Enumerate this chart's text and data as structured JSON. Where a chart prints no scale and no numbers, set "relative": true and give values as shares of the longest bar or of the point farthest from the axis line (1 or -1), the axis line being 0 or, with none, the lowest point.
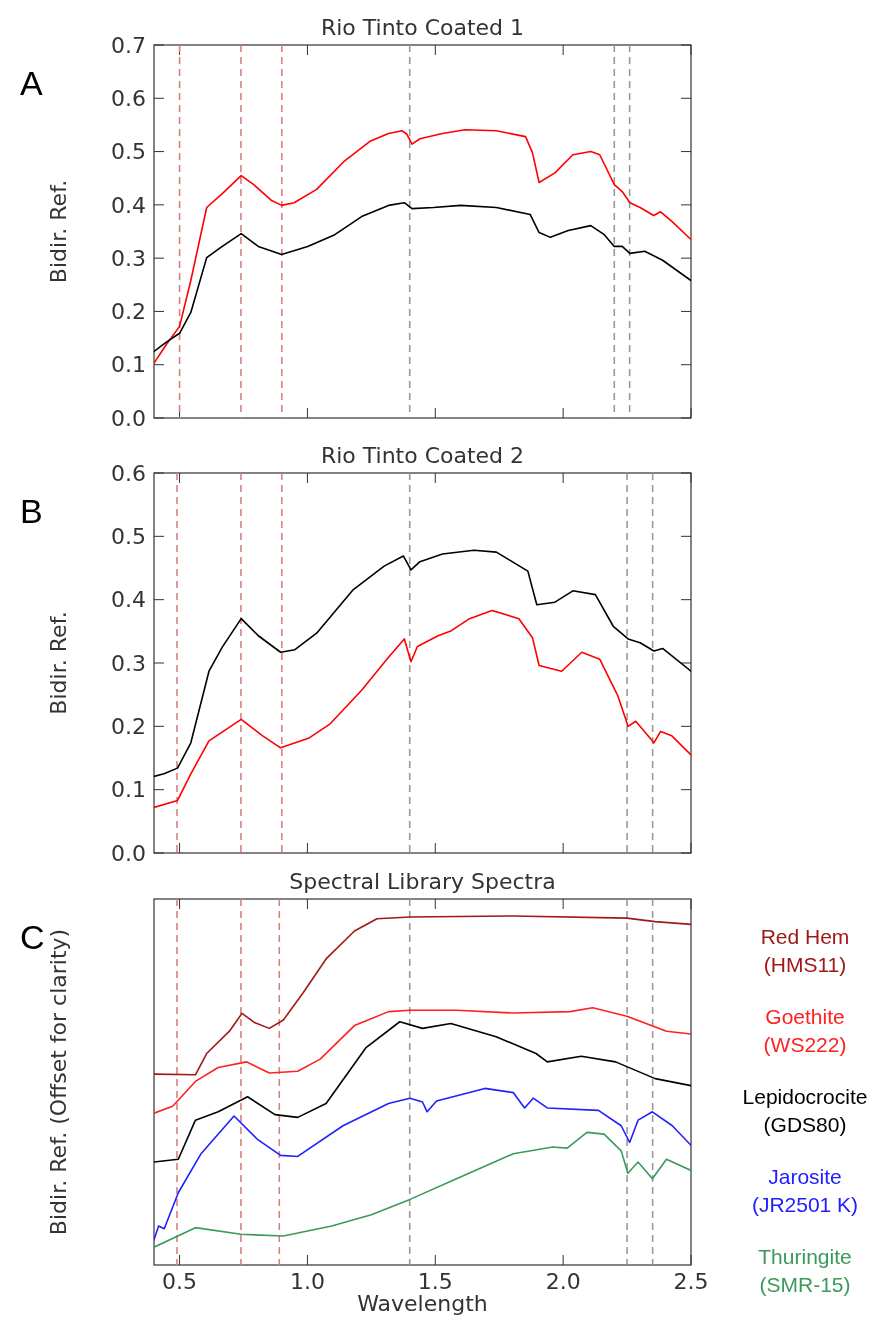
{
  "chart_data": [
    {
      "type": "line",
      "title": "Rio Tinto Coated 1",
      "ylabel": "Bidir. Ref.",
      "annotations": [
        "A"
      ],
      "xlim": [
        0.4,
        2.5
      ],
      "xticks": [
        {
          "value": 0.5,
          "label": null
        },
        {
          "value": 1,
          "label": null
        },
        {
          "value": 1.5,
          "label": null
        },
        {
          "value": 2,
          "label": null
        },
        {
          "value": 2.5,
          "label": null
        }
      ],
      "ylim": [
        0,
        0.7
      ],
      "yticks": [
        {
          "value": 0,
          "label": "0.0"
        },
        0.1,
        0.2,
        0.3,
        0.4,
        0.5,
        0.6,
        0.7
      ],
      "tick_labels": "y",
      "grid": false,
      "line_style": "solid",
      "ref_lines": [
        {
          "axis": "x",
          "value": 0.5,
          "color": "#d98080",
          "line_style": "dashed"
        },
        {
          "axis": "x",
          "value": 0.74,
          "color": "#d98080",
          "line_style": "dashed"
        },
        {
          "axis": "x",
          "value": 0.9,
          "color": "#d98080",
          "line_style": "dashed"
        },
        {
          "axis": "x",
          "value": 1.4,
          "color": "#999999",
          "line_style": "dashed"
        },
        {
          "axis": "x",
          "value": 2.2,
          "color": "#999999",
          "line_style": "dashed"
        },
        {
          "axis": "x",
          "value": 2.26,
          "color": "#999999",
          "line_style": "dashed"
        }
      ],
      "series": [
        {
          "color": "#ff0000",
          "x": [
            0.4,
            0.447,
            0.5,
            0.544,
            0.606,
            0.667,
            0.741,
            0.79,
            0.86,
            0.899,
            0.948,
            1.036,
            1.142,
            1.247,
            1.317,
            1.37,
            1.388,
            1.409,
            1.44,
            1.528,
            1.616,
            1.739,
            1.853,
            1.88,
            1.906,
            1.968,
            2.038,
            2.108,
            2.143,
            2.2,
            2.231,
            2.261,
            2.301,
            2.354,
            2.381,
            2.425,
            2.5
          ],
          "values": [
            0.103,
            0.137,
            0.172,
            0.258,
            0.395,
            0.421,
            0.455,
            0.438,
            0.408,
            0.399,
            0.404,
            0.429,
            0.481,
            0.52,
            0.534,
            0.539,
            0.533,
            0.514,
            0.524,
            0.534,
            0.541,
            0.539,
            0.528,
            0.498,
            0.442,
            0.46,
            0.494,
            0.5,
            0.494,
            0.438,
            0.425,
            0.404,
            0.395,
            0.38,
            0.387,
            0.369,
            0.335
          ]
        },
        {
          "color": "#000000",
          "x": [
            0.4,
            0.447,
            0.5,
            0.544,
            0.606,
            0.667,
            0.741,
            0.808,
            0.899,
            1.001,
            1.107,
            1.212,
            1.317,
            1.379,
            1.409,
            1.493,
            1.599,
            1.739,
            1.871,
            1.906,
            1.95,
            2.02,
            2.108,
            2.161,
            2.2,
            2.231,
            2.261,
            2.319,
            2.389,
            2.5
          ],
          "values": [
            0.125,
            0.142,
            0.159,
            0.198,
            0.301,
            0.322,
            0.346,
            0.322,
            0.307,
            0.322,
            0.344,
            0.378,
            0.399,
            0.404,
            0.393,
            0.395,
            0.399,
            0.395,
            0.382,
            0.348,
            0.339,
            0.352,
            0.361,
            0.344,
            0.322,
            0.322,
            0.309,
            0.313,
            0.296,
            0.258
          ]
        }
      ]
    },
    {
      "type": "line",
      "title": "Rio Tinto Coated 2",
      "ylabel": "Bidir. Ref.",
      "annotations": [
        "B"
      ],
      "xlim": [
        0.4,
        2.5
      ],
      "xticks": [
        {
          "value": 0.5,
          "label": null
        },
        {
          "value": 1,
          "label": null
        },
        {
          "value": 1.5,
          "label": null
        },
        {
          "value": 2,
          "label": null
        },
        {
          "value": 2.5,
          "label": null
        }
      ],
      "ylim": [
        0,
        0.6
      ],
      "yticks": [
        {
          "value": 0,
          "label": "0.0"
        },
        0.1,
        0.2,
        0.3,
        0.4,
        0.5,
        0.6
      ],
      "tick_labels": "y",
      "grid": false,
      "line_style": "solid",
      "ref_lines": [
        {
          "axis": "x",
          "value": 0.49,
          "color": "#d98080",
          "line_style": "dashed"
        },
        {
          "axis": "x",
          "value": 0.74,
          "color": "#d98080",
          "line_style": "dashed"
        },
        {
          "axis": "x",
          "value": 0.9,
          "color": "#d98080",
          "line_style": "dashed"
        },
        {
          "axis": "x",
          "value": 1.4,
          "color": "#999999",
          "line_style": "dashed"
        },
        {
          "axis": "x",
          "value": 2.25,
          "color": "#999999",
          "line_style": "dashed"
        },
        {
          "axis": "x",
          "value": 2.35,
          "color": "#999999",
          "line_style": "dashed"
        }
      ],
      "series": [
        {
          "color": "#000000",
          "x": [
            0.4,
            0.439,
            0.492,
            0.544,
            0.615,
            0.667,
            0.741,
            0.808,
            0.895,
            0.951,
            1.036,
            1.177,
            1.3,
            1.375,
            1.405,
            1.44,
            1.528,
            1.651,
            1.739,
            1.862,
            1.897,
            1.968,
            2.038,
            2.126,
            2.196,
            2.254,
            2.301,
            2.355,
            2.389,
            2.5
          ],
          "values": [
            0.121,
            0.125,
            0.134,
            0.174,
            0.287,
            0.325,
            0.37,
            0.343,
            0.317,
            0.321,
            0.347,
            0.415,
            0.453,
            0.469,
            0.447,
            0.46,
            0.472,
            0.478,
            0.475,
            0.445,
            0.392,
            0.396,
            0.414,
            0.408,
            0.358,
            0.338,
            0.332,
            0.319,
            0.323,
            0.287
          ]
        },
        {
          "color": "#ff0000",
          "x": [
            0.4,
            0.492,
            0.544,
            0.615,
            0.741,
            0.825,
            0.895,
            1.004,
            1.089,
            1.212,
            1.317,
            1.379,
            1.405,
            1.43,
            1.511,
            1.563,
            1.634,
            1.722,
            1.827,
            1.88,
            1.906,
            1.994,
            2.073,
            2.143,
            2.213,
            2.254,
            2.284,
            2.355,
            2.381,
            2.425,
            2.5
          ],
          "values": [
            0.072,
            0.083,
            0.125,
            0.177,
            0.211,
            0.185,
            0.166,
            0.181,
            0.204,
            0.257,
            0.309,
            0.338,
            0.302,
            0.326,
            0.343,
            0.351,
            0.37,
            0.383,
            0.37,
            0.34,
            0.296,
            0.287,
            0.317,
            0.306,
            0.249,
            0.2,
            0.208,
            0.174,
            0.192,
            0.185,
            0.155
          ]
        }
      ]
    },
    {
      "type": "line",
      "title": "Spectral Library Spectra",
      "xlabel": "Wavelength",
      "ylabel": "Bidir. Ref. (Offset for clarity)",
      "annotations": [
        "C"
      ],
      "relative": true,
      "xlim": [
        0.4,
        2.5
      ],
      "xticks": [
        0.5,
        {
          "value": 1,
          "label": "1.0"
        },
        1.5,
        {
          "value": 2,
          "label": "2.0"
        },
        2.5
      ],
      "tick_labels": "x",
      "grid": false,
      "line_style": "solid",
      "ref_lines": [
        {
          "axis": "x",
          "value": 0.49,
          "color": "#d98080",
          "line_style": "dashed"
        },
        {
          "axis": "x",
          "value": 0.74,
          "color": "#d98080",
          "line_style": "dashed"
        },
        {
          "axis": "x",
          "value": 0.89,
          "color": "#d98080",
          "line_style": "dashed"
        },
        {
          "axis": "x",
          "value": 1.4,
          "color": "#999999",
          "line_style": "dashed"
        },
        {
          "axis": "x",
          "value": 2.25,
          "color": "#999999",
          "line_style": "dashed"
        },
        {
          "axis": "x",
          "value": 2.35,
          "color": "#999999",
          "line_style": "dashed"
        }
      ],
      "series": [
        {
          "name": "Red Hem (HMS11)",
          "color": "#a01818",
          "x": [
            0.4,
            0.562,
            0.606,
            0.695,
            0.744,
            0.795,
            0.851,
            0.906,
            0.984,
            1.073,
            1.184,
            1.272,
            1.401,
            1.805,
            2.249,
            2.36,
            2.5
          ],
          "values": [
            0.547,
            0.545,
            0.606,
            0.67,
            0.721,
            0.694,
            0.678,
            0.702,
            0.781,
            0.877,
            0.957,
            0.992,
            0.997,
            1.0,
            0.994,
            0.984,
            0.976
          ]
        },
        {
          "name": "Goethite (WS222)",
          "color": "#ff2020",
          "x": [
            0.4,
            0.473,
            0.562,
            0.651,
            0.762,
            0.851,
            0.962,
            1.05,
            1.184,
            1.317,
            1.401,
            1.583,
            1.805,
            2.027,
            2.116,
            2.249,
            2.404,
            2.5
          ],
          "values": [
            0.435,
            0.455,
            0.526,
            0.566,
            0.582,
            0.55,
            0.555,
            0.59,
            0.686,
            0.726,
            0.73,
            0.73,
            0.722,
            0.726,
            0.737,
            0.713,
            0.67,
            0.662
          ]
        },
        {
          "name": "Lepidocrocite (GDS80)",
          "color": "#000000",
          "x": [
            0.4,
            0.495,
            0.562,
            0.651,
            0.766,
            0.873,
            0.962,
            1.073,
            1.228,
            1.361,
            1.45,
            1.561,
            1.738,
            1.894,
            1.938,
            2.071,
            2.205,
            2.36,
            2.5
          ],
          "values": [
            0.295,
            0.303,
            0.415,
            0.439,
            0.482,
            0.431,
            0.423,
            0.463,
            0.622,
            0.697,
            0.678,
            0.692,
            0.654,
            0.606,
            0.582,
            0.598,
            0.582,
            0.534,
            0.514
          ]
        },
        {
          "name": "Jarosite (JR2501 K)",
          "color": "#2020ff",
          "x": [
            0.4,
            0.418,
            0.44,
            0.495,
            0.584,
            0.713,
            0.806,
            0.895,
            0.962,
            1.139,
            1.317,
            1.401,
            1.45,
            1.468,
            1.505,
            1.694,
            1.805,
            1.849,
            1.883,
            1.938,
            2.138,
            2.227,
            2.26,
            2.293,
            2.349,
            2.427,
            2.5
          ],
          "values": [
            0.072,
            0.112,
            0.104,
            0.207,
            0.319,
            0.427,
            0.359,
            0.314,
            0.311,
            0.399,
            0.463,
            0.478,
            0.467,
            0.439,
            0.47,
            0.506,
            0.494,
            0.45,
            0.478,
            0.45,
            0.443,
            0.399,
            0.351,
            0.415,
            0.439,
            0.399,
            0.343
          ]
        },
        {
          "name": "Thuringite (SMR-15)",
          "color": "#3a9a5a",
          "x": [
            0.4,
            0.562,
            0.74,
            0.906,
            1.095,
            1.25,
            1.401,
            1.583,
            1.805,
            1.96,
            2.016,
            2.093,
            2.16,
            2.227,
            2.253,
            2.293,
            2.349,
            2.404,
            2.5
          ],
          "values": [
            0.051,
            0.107,
            0.088,
            0.083,
            0.112,
            0.144,
            0.188,
            0.247,
            0.319,
            0.338,
            0.335,
            0.38,
            0.375,
            0.327,
            0.263,
            0.295,
            0.247,
            0.303,
            0.271
          ]
        }
      ]
    }
  ]
}
